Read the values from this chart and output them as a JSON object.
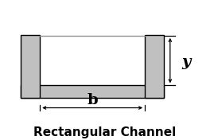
{
  "title": "Rectangular Channel",
  "title_fontsize": 11,
  "title_fontweight": "bold",
  "bg_color": "#ffffff",
  "channel_fill": "#c0c0c0",
  "channel_edge": "#000000",
  "water_line_color": "#909090",
  "label_b": "b",
  "label_y": "y",
  "label_fontsize": 12,
  "lw": 1.0,
  "ox": 0.1,
  "oy": 0.3,
  "ow": 0.68,
  "oh": 0.45,
  "t": 0.09
}
